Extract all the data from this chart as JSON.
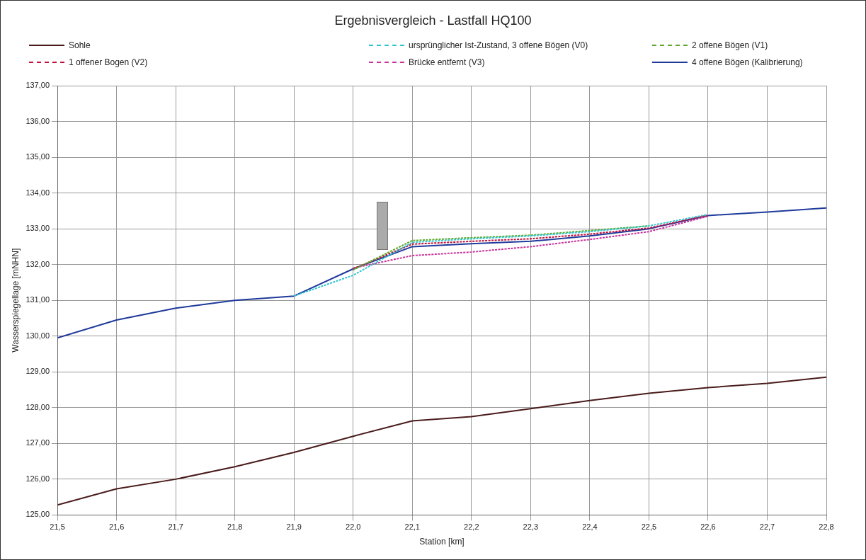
{
  "chart_data": {
    "type": "line",
    "title": "Ergebnisvergleich - Lastfall HQ100",
    "xlabel": "Station [km]",
    "ylabel": "Wasserspiegellage [mNHN]",
    "x": [
      21.5,
      21.6,
      21.7,
      21.8,
      21.9,
      22.0,
      22.1,
      22.2,
      22.3,
      22.4,
      22.5,
      22.6,
      22.7,
      22.8
    ],
    "series": [
      {
        "name": "Sohle",
        "color": "#4a1c1c",
        "line_style": "solid",
        "values": [
          125.28,
          125.73,
          126.0,
          126.35,
          126.75,
          127.2,
          127.63,
          127.75,
          127.97,
          128.2,
          128.4,
          128.56,
          128.68,
          128.85
        ]
      },
      {
        "name": "ursprünglicher Ist-Zustand, 3 offene Bögen (V0)",
        "color": "#33c6d0",
        "line_style": "dashed",
        "values": [
          null,
          null,
          null,
          null,
          131.12,
          131.7,
          132.62,
          132.72,
          132.8,
          132.92,
          133.08,
          133.4,
          null,
          null
        ]
      },
      {
        "name": "2 offene Bögen (V1)",
        "color": "#5fa82a",
        "line_style": "dashed",
        "values": [
          null,
          null,
          null,
          null,
          null,
          131.85,
          132.67,
          132.75,
          132.82,
          132.95,
          133.08,
          null,
          null,
          null
        ]
      },
      {
        "name": "1 offener Bogen (V2)",
        "color": "#c0143c",
        "line_style": "dashed",
        "values": [
          null,
          null,
          null,
          null,
          null,
          131.88,
          132.57,
          132.65,
          132.72,
          132.85,
          133.02,
          133.38,
          null,
          null
        ]
      },
      {
        "name": "Brücke entfernt (V3)",
        "color": "#c8349a",
        "line_style": "dashed",
        "values": [
          null,
          null,
          null,
          null,
          null,
          131.9,
          132.25,
          132.35,
          132.5,
          132.7,
          132.92,
          133.35,
          null,
          null
        ]
      },
      {
        "name": "4 offene Bögen (Kalibrierung)",
        "color": "#1f3a9c",
        "line_style": "solid",
        "values": [
          129.95,
          130.45,
          130.78,
          131.0,
          131.12,
          131.88,
          132.5,
          132.58,
          132.65,
          132.8,
          133.0,
          133.37,
          133.47,
          133.58
        ]
      }
    ],
    "xlim": [
      21.5,
      22.8
    ],
    "xticks": [
      {
        "value": 21.5,
        "label": "21,5"
      },
      {
        "value": 21.6,
        "label": "21,6"
      },
      {
        "value": 21.7,
        "label": "21,7"
      },
      {
        "value": 21.8,
        "label": "21,8"
      },
      {
        "value": 21.9,
        "label": "21,9"
      },
      {
        "value": 22.0,
        "label": "22,0"
      },
      {
        "value": 22.1,
        "label": "22,1"
      },
      {
        "value": 22.2,
        "label": "22,2"
      },
      {
        "value": 22.3,
        "label": "22,3"
      },
      {
        "value": 22.4,
        "label": "22,4"
      },
      {
        "value": 22.5,
        "label": "22,5"
      },
      {
        "value": 22.6,
        "label": "22,6"
      },
      {
        "value": 22.7,
        "label": "22,7"
      },
      {
        "value": 22.8,
        "label": "22,8"
      }
    ],
    "ylim": [
      125,
      137
    ],
    "yticks": [
      {
        "value": 125,
        "label": "125,00"
      },
      {
        "value": 126,
        "label": "126,00"
      },
      {
        "value": 127,
        "label": "127,00"
      },
      {
        "value": 128,
        "label": "128,00"
      },
      {
        "value": 129,
        "label": "129,00"
      },
      {
        "value": 130,
        "label": "130,00"
      },
      {
        "value": 131,
        "label": "131,00"
      },
      {
        "value": 132,
        "label": "132,00"
      },
      {
        "value": 133,
        "label": "133,00"
      },
      {
        "value": 134,
        "label": "134,00"
      },
      {
        "value": 135,
        "label": "135,00"
      },
      {
        "value": 136,
        "label": "136,00"
      },
      {
        "value": 137,
        "label": "137,00"
      }
    ],
    "grid": true,
    "legend": "top",
    "marker": "none"
  }
}
